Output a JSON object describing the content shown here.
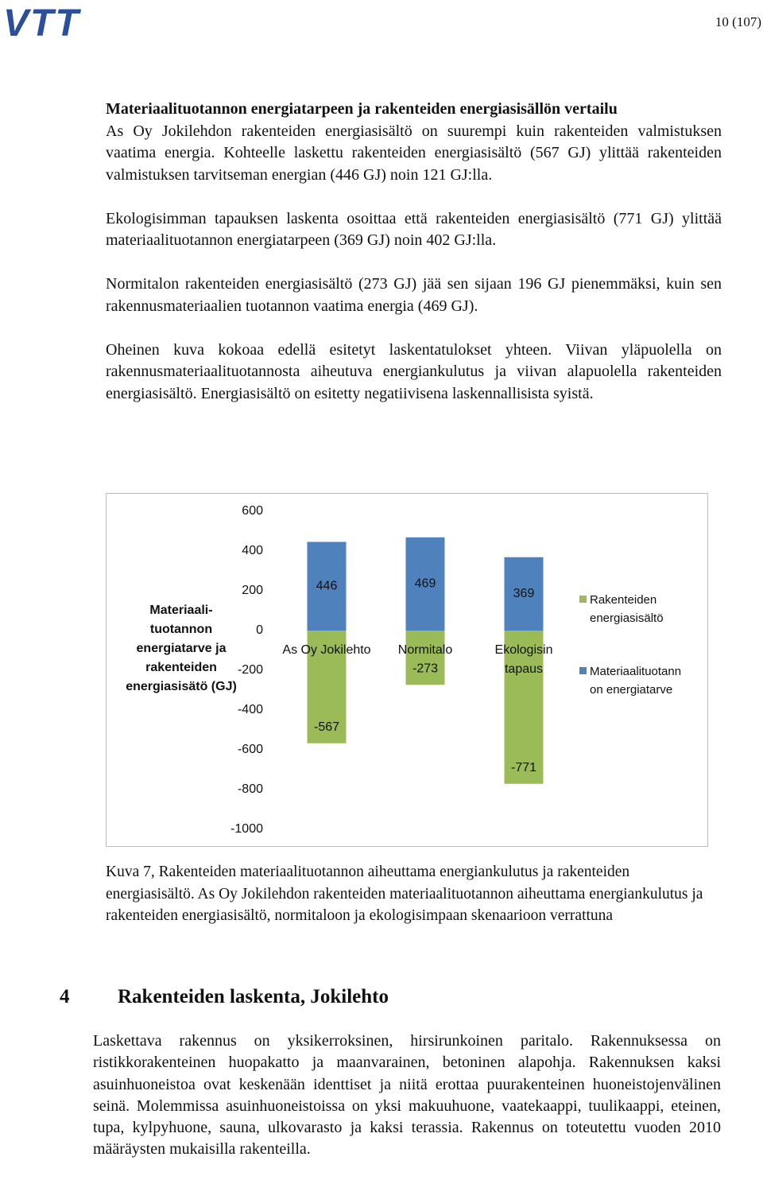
{
  "header": {
    "logo": "VTT",
    "page_number": "10 (107)"
  },
  "section1": {
    "heading": "Materiaalituotannon energiatarpeen ja rakenteiden energiasisällön vertailu",
    "paragraphs": [
      "As Oy Jokilehdon rakenteiden energiasisältö on suurempi kuin rakenteiden valmistuksen vaatima energia. Kohteelle laskettu rakenteiden energiasisältö (567 GJ) ylittää rakenteiden valmistuksen tarvitseman energian (446 GJ) noin 121 GJ:lla.",
      "Ekologisimman tapauksen laskenta osoittaa että rakenteiden energiasisältö (771 GJ) ylittää materiaalituotannon energiatarpeen (369 GJ) noin 402 GJ:lla.",
      "Normitalon rakenteiden energiasisältö (273 GJ) jää sen sijaan 196 GJ pienemmäksi, kuin sen rakennusmateriaalien tuotannon vaatima energia (469 GJ).",
      "Oheinen kuva kokoaa edellä esitetyt laskentatulokset yhteen. Viivan yläpuolella on rakennusmateriaalituotannosta aiheutuva energiankulutus ja viivan alapuolella rakenteiden energiasisältö. Energiasisältö on esitetty negatiivisena laskennallisista syistä."
    ]
  },
  "chart_data": {
    "type": "bar",
    "y_label": "Materiaali-tuotannon energiatarve ja rakenteiden energiasisätö (GJ)",
    "categories": [
      "As Oy Jokilehto",
      "Normitalo",
      "Ekologisin tapaus"
    ],
    "series": [
      {
        "name": "Rakenteiden energiasisältö",
        "color": "#9bbb59",
        "values": [
          -567,
          -273,
          -771
        ]
      },
      {
        "name": "Materiaalituotannon energiatarve",
        "color": "#4f81bd",
        "values": [
          446,
          469,
          369
        ]
      }
    ],
    "ylim": [
      -1000,
      600
    ],
    "yticks": [
      -1000,
      -800,
      -600,
      -400,
      -200,
      0,
      200,
      400,
      600
    ],
    "grid": false,
    "legend": "right"
  },
  "caption": "Kuva 7, Rakenteiden materiaalituotannon aiheuttama energiankulutus ja rakenteiden energiasisältö. As Oy Jokilehdon rakenteiden materiaalituotannon aiheuttama energiankulutus ja rakenteiden energiasisältö, normitaloon ja ekologisimpaan skenaarioon verrattuna",
  "section2": {
    "number": "4",
    "title": "Rakenteiden laskenta, Jokilehto",
    "paragraph": "Laskettava rakennus on yksikerroksinen, hirsirunkoinen paritalo. Rakennuksessa on ristikkorakenteinen huopakatto ja maanvarainen, betoninen alapohja. Rakennuksen kaksi asuinhuoneistoa ovat keskenään identtiset ja niitä erottaa puurakenteinen huoneistojenvälinen seinä. Molemmissa asuinhuoneistoissa on yksi makuuhuone, vaatekaappi, tuulikaappi, eteinen, tupa, kylpyhuone, sauna, ulkovarasto ja kaksi terassia. Rakennus on toteutettu vuoden 2010 määräysten mukaisilla rakenteilla."
  }
}
